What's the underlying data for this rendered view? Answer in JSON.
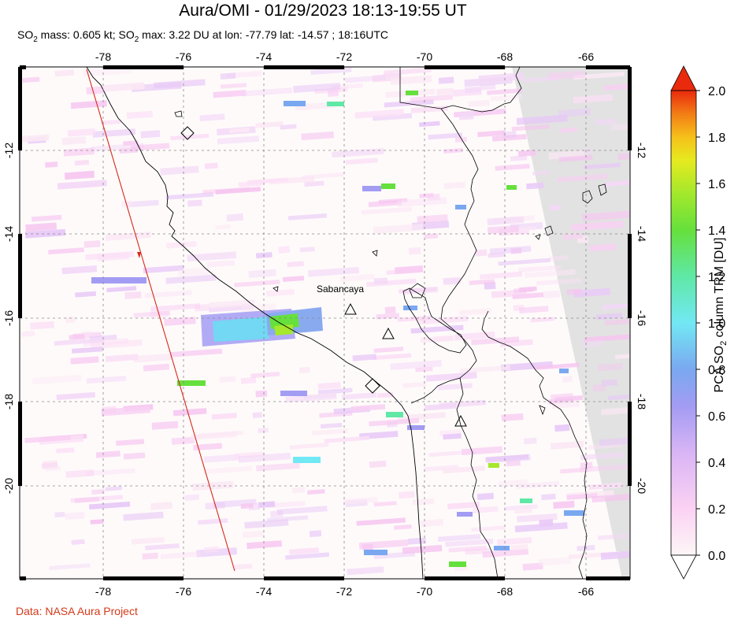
{
  "title": "Aura/OMI - 01/29/2023 18:13-19:55 UT",
  "subtitle": {
    "p1": "SO",
    "sub1": "2",
    "p2": " mass: 0.605 kt; SO",
    "sub2": "2",
    "p3": " max: 3.22 DU at lon: -77.79 lat: -14.57 ; 18:16UTC"
  },
  "map": {
    "lon_range": [
      -80,
      -65
    ],
    "lat_range": [
      -22.2,
      -10.2
    ],
    "lon_ticks": [
      "-78",
      "-76",
      "-74",
      "-72",
      "-70",
      "-68",
      "-66"
    ],
    "lat_ticks": [
      "-12",
      "-14",
      "-16",
      "-18",
      "-20"
    ],
    "volcano_label": "Sabancaya"
  },
  "colorbar": {
    "label_p1": "PCA SO",
    "label_sub": "2",
    "label_p2": " column TRM [DU]",
    "ticks": [
      "2.0",
      "1.8",
      "1.6",
      "1.4",
      "1.2",
      "1.0",
      "0.8",
      "0.6",
      "0.4",
      "0.2",
      "0.0"
    ],
    "colors": [
      "#fdf6f6",
      "#fbd2f3",
      "#d9b5f5",
      "#a39cf3",
      "#7aa8f0",
      "#72e8f4",
      "#5fe8a6",
      "#66e03c",
      "#a5e82c",
      "#e6ea1f",
      "#f6c01a",
      "#f27d16",
      "#ea2a0d"
    ]
  },
  "credit": "Data: NASA Aura Project"
}
